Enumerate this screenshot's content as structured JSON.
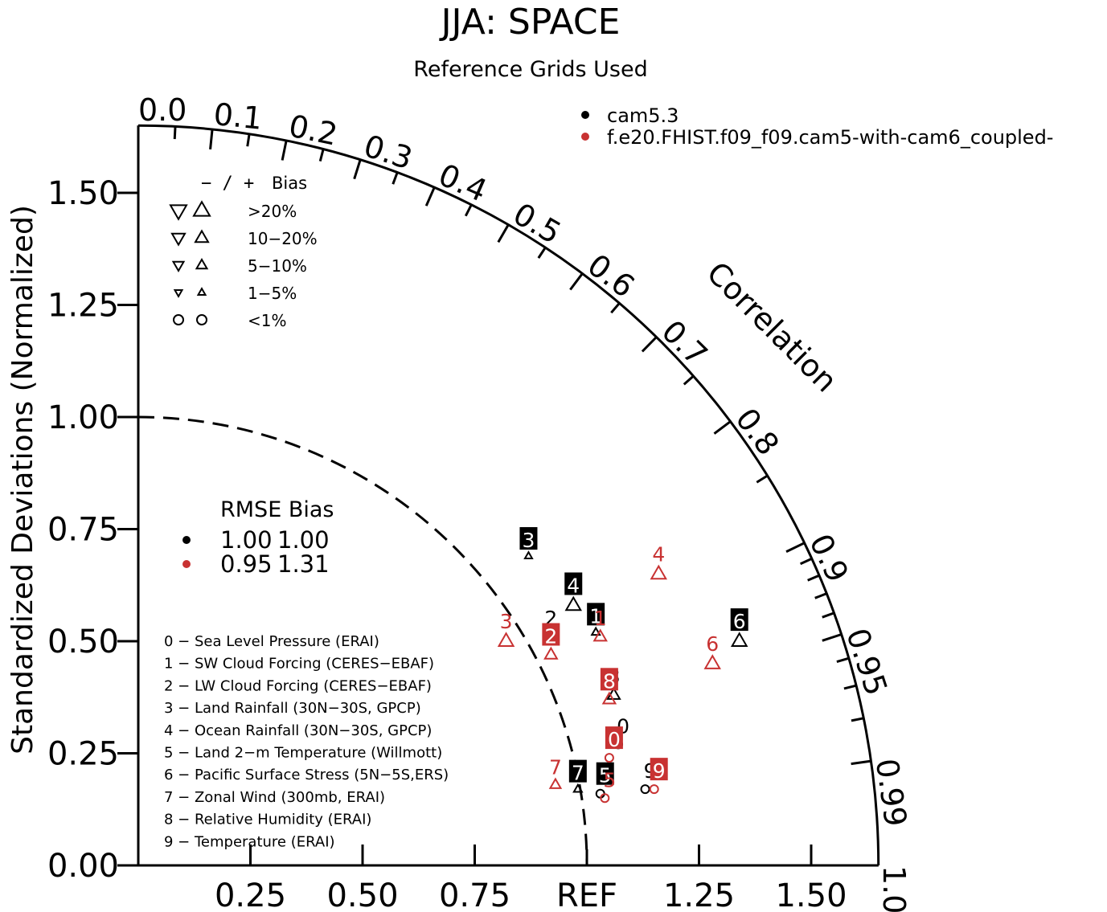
{
  "title": "JJA: SPACE",
  "subtitle": "Reference Grids Used",
  "chart_data": {
    "type": "taylor",
    "ylabel": "Standardized Deviations (Normalized)",
    "correlation_label": "Correlation",
    "ref_label": "REF",
    "std_range": [
      0,
      1.65
    ],
    "x_ticks": [
      "0.25",
      "0.50",
      "0.75",
      "1.25",
      "1.50"
    ],
    "x_tick_values": [
      0.25,
      0.5,
      0.75,
      1.25,
      1.5
    ],
    "y_ticks": [
      "0.00",
      "0.25",
      "0.50",
      "0.75",
      "1.00",
      "1.25",
      "1.50"
    ],
    "y_tick_values": [
      0,
      0.25,
      0.5,
      0.75,
      1.0,
      1.25,
      1.5
    ],
    "corr_major": [
      {
        "v": 0.0,
        "label": "0.0"
      },
      {
        "v": 0.1,
        "label": "0.1"
      },
      {
        "v": 0.2,
        "label": "0.2"
      },
      {
        "v": 0.3,
        "label": "0.3"
      },
      {
        "v": 0.4,
        "label": "0.4"
      },
      {
        "v": 0.5,
        "label": "0.5"
      },
      {
        "v": 0.6,
        "label": "0.6"
      },
      {
        "v": 0.7,
        "label": "0.7"
      },
      {
        "v": 0.8,
        "label": "0.8"
      },
      {
        "v": 0.9,
        "label": "0.9"
      },
      {
        "v": 0.95,
        "label": "0.95"
      },
      {
        "v": 0.99,
        "label": "0.99"
      },
      {
        "v": 1.0,
        "label": "1.0"
      }
    ],
    "corr_minor": [
      0.05,
      0.15,
      0.25,
      0.35,
      0.45,
      0.55,
      0.65,
      0.75,
      0.85,
      0.91,
      0.92,
      0.93,
      0.94,
      0.96,
      0.97,
      0.98
    ],
    "series": [
      {
        "name": "cam5.3",
        "color": "#000000",
        "points": [
          {
            "label": "0",
            "x": 1.07,
            "y": 0.27,
            "marker": "circle",
            "size": 10,
            "label_box": false
          },
          {
            "label": "1",
            "x": 1.02,
            "y": 0.52,
            "marker": "tri-up",
            "size": 10,
            "label_box": true
          },
          {
            "label": "2",
            "x": 0.92,
            "y": 0.51,
            "marker": "tri-up",
            "size": 15,
            "label_box": false
          },
          {
            "label": "3",
            "x": 0.87,
            "y": 0.69,
            "marker": "tri-up",
            "size": 9,
            "label_box": true
          },
          {
            "label": "4",
            "x": 0.97,
            "y": 0.58,
            "marker": "tri-up",
            "size": 18,
            "label_box": true
          },
          {
            "label": "5",
            "x": 1.03,
            "y": 0.16,
            "marker": "circle",
            "size": 10,
            "label_box": true
          },
          {
            "label": "6",
            "x": 1.34,
            "y": 0.5,
            "marker": "tri-up",
            "size": 18,
            "label_box": true
          },
          {
            "label": "7",
            "x": 0.98,
            "y": 0.17,
            "marker": "tri-up",
            "size": 10,
            "label_box": true
          },
          {
            "label": "8",
            "x": 1.06,
            "y": 0.38,
            "marker": "tri-up",
            "size": 15,
            "label_box": false
          },
          {
            "label": "9",
            "x": 1.13,
            "y": 0.17,
            "marker": "circle",
            "size": 10,
            "label_box": false
          }
        ]
      },
      {
        "name": "f.e20.FHIST.f09_f09.cam5-with-cam6_coupled-",
        "color": "#c83232",
        "points": [
          {
            "label": "0",
            "x": 1.05,
            "y": 0.24,
            "marker": "circle",
            "size": 10,
            "label_box": true
          },
          {
            "label": "1",
            "x": 1.03,
            "y": 0.51,
            "marker": "tri-up",
            "size": 15,
            "label_box": false
          },
          {
            "label": "2",
            "x": 0.92,
            "y": 0.47,
            "marker": "tri-up",
            "size": 15,
            "label_box": true
          },
          {
            "label": "3",
            "x": 0.82,
            "y": 0.5,
            "marker": "tri-up",
            "size": 18,
            "label_box": false
          },
          {
            "label": "4",
            "x": 1.16,
            "y": 0.65,
            "marker": "tri-up",
            "size": 18,
            "label_box": false
          },
          {
            "label": "5",
            "x": 1.04,
            "y": 0.15,
            "marker": "circle",
            "size": 10,
            "label_box": false
          },
          {
            "label": "6",
            "x": 1.28,
            "y": 0.45,
            "marker": "tri-up",
            "size": 18,
            "label_box": false
          },
          {
            "label": "7",
            "x": 0.93,
            "y": 0.18,
            "marker": "tri-up",
            "size": 13,
            "label_box": false
          },
          {
            "label": "8",
            "x": 1.05,
            "y": 0.37,
            "marker": "tri-up",
            "size": 15,
            "label_box": true
          },
          {
            "label": "9",
            "x": 1.15,
            "y": 0.17,
            "marker": "circle",
            "size": 10,
            "label_box": true
          }
        ]
      }
    ],
    "bias_legend": {
      "header_sign": "−  /  +",
      "header_label": "Bias",
      "rows": [
        {
          "label": ">20%",
          "marker": "tri",
          "size": 20
        },
        {
          "label": "10−20%",
          "marker": "tri",
          "size": 16
        },
        {
          "label": "5−10%",
          "marker": "tri",
          "size": 13
        },
        {
          "label": "1−5%",
          "marker": "tri",
          "size": 9
        },
        {
          "label": "<1%",
          "marker": "circle",
          "size": 12
        }
      ]
    },
    "rmse_legend": {
      "header": "RMSE Bias",
      "rows": [
        {
          "color": "#000000",
          "rmse": "1.00",
          "bias": "1.00"
        },
        {
          "color": "#c83232",
          "rmse": "0.95",
          "bias": "1.31"
        }
      ]
    },
    "variables": [
      "0 − Sea Level Pressure (ERAI)",
      "1 − SW Cloud Forcing (CERES−EBAF)",
      "2 − LW Cloud Forcing (CERES−EBAF)",
      "3 − Land Rainfall (30N−30S, GPCP)",
      "4 − Ocean Rainfall (30N−30S, GPCP)",
      "5 − Land 2−m Temperature (Willmott)",
      "6 − Pacific Surface Stress (5N−5S,ERS)",
      "7 − Zonal Wind (300mb, ERAI)",
      "8 − Relative Humidity (ERAI)",
      "9 − Temperature (ERAI)"
    ]
  }
}
